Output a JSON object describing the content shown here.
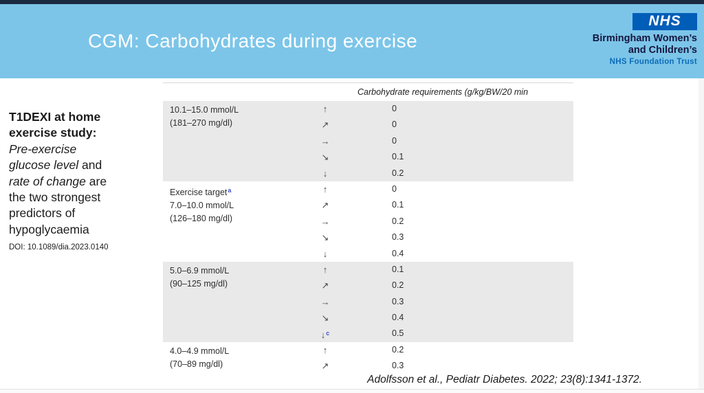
{
  "banner": {
    "title": "CGM: Carbohydrates during exercise",
    "bg_color": "#7CC5E9",
    "top_bar_color": "#1B2940",
    "nhs_logo": {
      "nhs_text": "NHS",
      "box_color": "#005EB8",
      "org_line1": "Birmingham Women’s",
      "org_line2": "and Children’s",
      "trust_line": "NHS Foundation Trust",
      "trust_color": "#0B6CB7"
    }
  },
  "sidebar": {
    "heading_line1": "T1DEXI at home",
    "heading_line2": "exercise study:",
    "italic1": "Pre-exercise",
    "italic2": "glucose level",
    "plain2": " and",
    "italic3": "rate of change",
    "plain3": " are",
    "line4": "the two strongest",
    "line5": "predictors of",
    "line6": "hypoglycaemia",
    "doi": "DOI: 10.1089/dia.2023.0140"
  },
  "table": {
    "header": "Carbohydrate requirements (g/kg/BW/20 min",
    "shade_color": "#E9E9E9",
    "footnote_color": "#4150C8",
    "groups": [
      {
        "shaded": true,
        "label_lines": [
          "10.1–15.0 mmol/L",
          "(181–270 mg/dl)"
        ],
        "label_sup": "",
        "rows": [
          {
            "arrow": "↑",
            "arrow_name": "arrow-up-icon",
            "sup": "",
            "value": "0"
          },
          {
            "arrow": "↗",
            "arrow_name": "arrow-up-right-icon",
            "sup": "",
            "value": "0"
          },
          {
            "arrow": "→",
            "arrow_name": "arrow-right-icon",
            "sup": "",
            "value": "0"
          },
          {
            "arrow": "↘",
            "arrow_name": "arrow-down-right-icon",
            "sup": "",
            "value": "0.1"
          },
          {
            "arrow": "↓",
            "arrow_name": "arrow-down-icon",
            "sup": "",
            "value": "0.2"
          }
        ]
      },
      {
        "shaded": false,
        "label_lines": [
          "Exercise target",
          "7.0–10.0 mmol/L",
          "(126–180 mg/dl)"
        ],
        "label_sup": "a",
        "rows": [
          {
            "arrow": "↑",
            "arrow_name": "arrow-up-icon",
            "sup": "",
            "value": "0"
          },
          {
            "arrow": "↗",
            "arrow_name": "arrow-up-right-icon",
            "sup": "",
            "value": "0.1"
          },
          {
            "arrow": "→",
            "arrow_name": "arrow-right-icon",
            "sup": "",
            "value": "0.2"
          },
          {
            "arrow": "↘",
            "arrow_name": "arrow-down-right-icon",
            "sup": "",
            "value": "0.3"
          },
          {
            "arrow": "↓",
            "arrow_name": "arrow-down-icon",
            "sup": "",
            "value": "0.4"
          }
        ]
      },
      {
        "shaded": true,
        "label_lines": [
          "5.0–6.9 mmol/L",
          "(90–125 mg/dl)"
        ],
        "label_sup": "",
        "rows": [
          {
            "arrow": "↑",
            "arrow_name": "arrow-up-icon",
            "sup": "",
            "value": "0.1"
          },
          {
            "arrow": "↗",
            "arrow_name": "arrow-up-right-icon",
            "sup": "",
            "value": "0.2"
          },
          {
            "arrow": "→",
            "arrow_name": "arrow-right-icon",
            "sup": "",
            "value": "0.3"
          },
          {
            "arrow": "↘",
            "arrow_name": "arrow-down-right-icon",
            "sup": "",
            "value": "0.4"
          },
          {
            "arrow": "↓",
            "arrow_name": "arrow-down-icon",
            "sup": "c",
            "value": "0.5"
          }
        ]
      },
      {
        "shaded": false,
        "label_lines": [
          "4.0–4.9 mmol/L",
          "(70–89 mg/dl)"
        ],
        "label_sup": "",
        "rows": [
          {
            "arrow": "↑",
            "arrow_name": "arrow-up-icon",
            "sup": "",
            "value": "0.2"
          },
          {
            "arrow": "↗",
            "arrow_name": "arrow-up-right-icon",
            "sup": "",
            "value": "0.3"
          }
        ]
      }
    ]
  },
  "citation": "Adolfsson et al., Pediatr Diabetes. 2022; 23(8):1341-1372."
}
